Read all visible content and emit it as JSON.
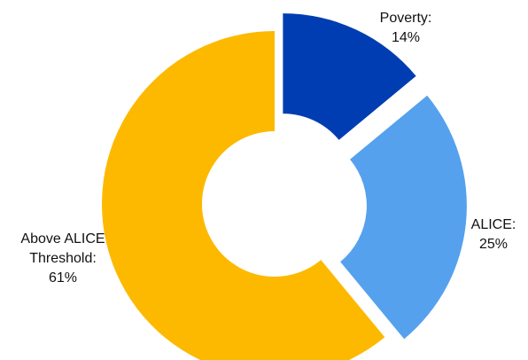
{
  "chart_data": {
    "type": "pie",
    "donut": true,
    "title": "",
    "slices": [
      {
        "label_line1": "Poverty:",
        "label_line2": "",
        "value_text": "14%",
        "value": 14,
        "color": "#003DB3",
        "exploded": true
      },
      {
        "label_line1": "ALICE:",
        "label_line2": "",
        "value_text": "25%",
        "value": 25,
        "color": "#55A1EE",
        "exploded": true
      },
      {
        "label_line1": "Above ALICE",
        "label_line2": "Threshold:",
        "value_text": "61%",
        "value": 61,
        "color": "#FDB900",
        "exploded": false
      }
    ],
    "legend": "none"
  }
}
